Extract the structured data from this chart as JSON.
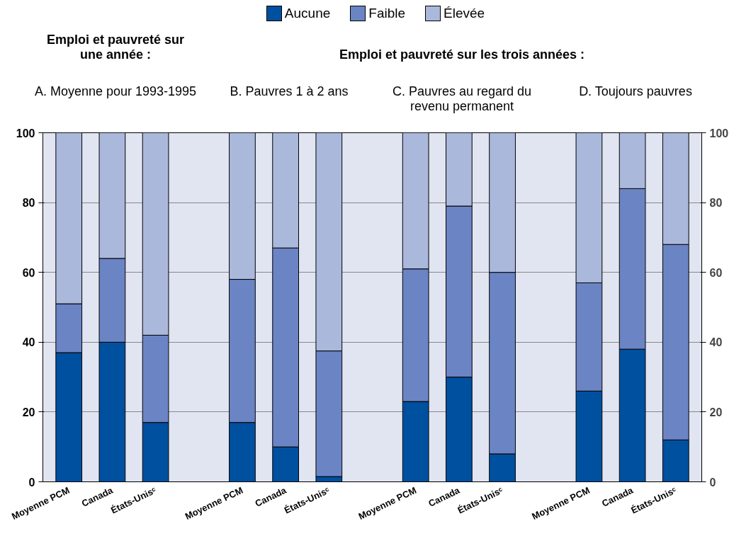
{
  "chart_data": {
    "type": "bar",
    "stacked": true,
    "categories": [
      "Moyenne PCM",
      "Canada",
      "États-Unisᶜ",
      null,
      "Moyenne PCM",
      "Canada",
      "États-Unisᶜ",
      null,
      "Moyenne PCM",
      "Canada",
      "États-Unisᶜ",
      null,
      "Moyenne PCM",
      "Canada",
      "États-Unisᶜ"
    ],
    "series": [
      {
        "name": "Aucune",
        "color": "#0050a0",
        "values": [
          37,
          40,
          17,
          null,
          17,
          10,
          1.5,
          null,
          23,
          30,
          8,
          null,
          26,
          38,
          12
        ]
      },
      {
        "name": "Faible",
        "color": "#6b84c4",
        "values": [
          14,
          24,
          25,
          null,
          41,
          57,
          36,
          null,
          38,
          49,
          52,
          null,
          31,
          46,
          56
        ]
      },
      {
        "name": "Élevée",
        "color": "#aab8dc",
        "values": [
          49,
          36,
          58,
          null,
          42,
          33,
          62.5,
          null,
          39,
          21,
          40,
          null,
          43,
          16,
          32
        ]
      }
    ],
    "ylim": [
      0,
      100
    ],
    "yticks": [
      0,
      20,
      40,
      60,
      80,
      100
    ],
    "y2lim": [
      0,
      100
    ],
    "y2ticks": [
      0,
      20,
      40,
      60,
      80,
      100
    ],
    "grid": "y",
    "legend": "top",
    "annotations": [
      "Emploi et pauvreté sur\nune année :",
      "Emploi et pauvreté sur les trois années :",
      "A. Moyenne pour 1993-1995",
      "B. Pauvres 1 à 2 ans",
      "C. Pauvres au regard du\nrevenu permanent",
      "D. Toujours pauvres"
    ]
  }
}
